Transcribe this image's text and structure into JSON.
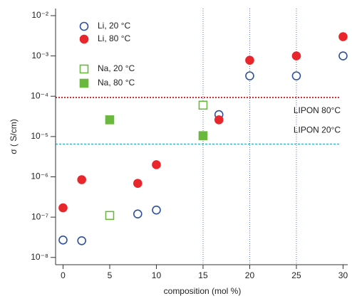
{
  "chart_data": {
    "type": "scatter",
    "xlabel": "composition (mol %)",
    "ylabel": "σ ( S/cm)",
    "xlim": [
      -0.8,
      30.5
    ],
    "ylim": [
      6.6e-09,
      0.015
    ],
    "log_y": true,
    "xticks": [
      0,
      5,
      10,
      15,
      20,
      25,
      30
    ],
    "yticks": [
      {
        "value": 1e-08,
        "label": "10⁻⁸"
      },
      {
        "value": 1e-07,
        "label": "10⁻⁷"
      },
      {
        "value": 1e-06,
        "label": "10⁻⁶"
      },
      {
        "value": 1e-05,
        "label": "10⁻⁵"
      },
      {
        "value": 0.0001,
        "label": "10⁻⁴"
      },
      {
        "value": 0.001,
        "label": "10⁻³"
      },
      {
        "value": 0.01,
        "label": "10⁻²"
      }
    ],
    "vlines": {
      "values": [
        15,
        20,
        25
      ],
      "color": "#5a6fc8"
    },
    "hlines": [
      {
        "value": 9.3e-05,
        "label": "LIPON 80°C",
        "color": "#e8262b"
      },
      {
        "value": 6.5e-06,
        "label": "LIPON 20°C",
        "color": "#2aa8c8"
      }
    ],
    "series": [
      {
        "name": "Li, 20 °C",
        "color": "#2f4fa0",
        "marker": "circle",
        "filled": false,
        "x": [
          0,
          2,
          8,
          10,
          16.7,
          20,
          25,
          30
        ],
        "values": [
          2.7e-08,
          2.6e-08,
          1.2e-07,
          1.5e-07,
          3.5e-05,
          0.00032,
          0.00032,
          0.001
        ]
      },
      {
        "name": "Li, 80 °C",
        "color": "#e8262b",
        "marker": "circle",
        "filled": true,
        "x": [
          0,
          2,
          8,
          10,
          16.7,
          20,
          25,
          30
        ],
        "values": [
          1.7e-07,
          8.5e-07,
          6.9e-07,
          2e-06,
          2.6e-05,
          0.00078,
          0.001,
          0.003
        ]
      },
      {
        "name": "Na, 20 °C",
        "color": "#6ab83e",
        "marker": "square",
        "filled": false,
        "x": [
          5,
          15
        ],
        "values": [
          1.1e-07,
          6e-05
        ]
      },
      {
        "name": "Na, 80 °C",
        "color": "#6ab83e",
        "marker": "square",
        "filled": true,
        "x": [
          5,
          15
        ],
        "values": [
          2.6e-05,
          1.05e-05
        ]
      }
    ]
  }
}
